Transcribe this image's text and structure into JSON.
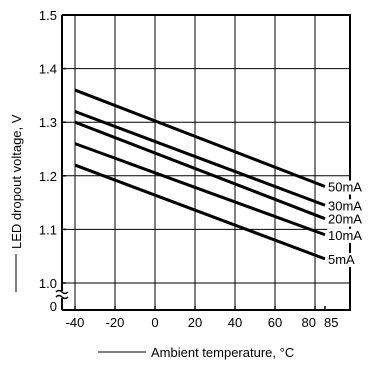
{
  "chart_data": {
    "type": "line",
    "xlabel": "Ambient temperature, °C",
    "ylabel": "LED dropout voltage, V",
    "xlim": [
      -50,
      95
    ],
    "ylim": [
      1.0,
      1.5
    ],
    "x_ticks": [
      -40,
      -20,
      0,
      20,
      40,
      60,
      80,
      85
    ],
    "x_tick_labels": [
      "-40",
      "-20",
      "0",
      "20",
      "40",
      "60",
      "80",
      "85"
    ],
    "y_ticks": [
      1.0,
      1.1,
      1.2,
      1.3,
      1.4,
      1.5
    ],
    "y_tick_labels": [
      "1.0",
      "1.1",
      "1.2",
      "1.3",
      "1.4",
      "1.5"
    ],
    "y_zero_label": "0",
    "grid": true,
    "axis_break": true,
    "series": [
      {
        "name": "50mA",
        "x": [
          -40,
          85
        ],
        "y": [
          1.36,
          1.18
        ]
      },
      {
        "name": "30mA",
        "x": [
          -40,
          85
        ],
        "y": [
          1.32,
          1.145
        ]
      },
      {
        "name": "20mA",
        "x": [
          -40,
          85
        ],
        "y": [
          1.3,
          1.12
        ]
      },
      {
        "name": "10mA",
        "x": [
          -40,
          85
        ],
        "y": [
          1.26,
          1.09
        ]
      },
      {
        "name": "5mA",
        "x": [
          -40,
          85
        ],
        "y": [
          1.22,
          1.045
        ]
      }
    ],
    "colors": {
      "line": "#000000",
      "grid": "#000000",
      "background": "#ffffff"
    }
  }
}
